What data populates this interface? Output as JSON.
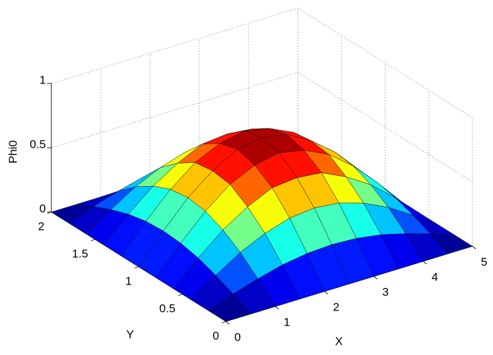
{
  "chart_data": {
    "type": "surface",
    "colormap": "jet",
    "grid": true,
    "xlabel": "X",
    "ylabel": "Y",
    "zlabel": "Phi0",
    "x": [
      0,
      0.5,
      1,
      1.5,
      2,
      2.5,
      3,
      3.5,
      4,
      4.5,
      5
    ],
    "y": [
      0,
      0.2,
      0.4,
      0.6,
      0.8,
      1,
      1.2,
      1.4,
      1.6,
      1.8,
      2
    ],
    "z": [
      [
        0,
        0,
        0,
        0,
        0,
        0,
        0,
        0,
        0,
        0,
        0
      ],
      [
        0,
        0.07,
        0.13,
        0.18,
        0.21,
        0.22,
        0.21,
        0.18,
        0.13,
        0.07,
        0
      ],
      [
        0,
        0.13,
        0.25,
        0.34,
        0.4,
        0.42,
        0.4,
        0.34,
        0.25,
        0.13,
        0
      ],
      [
        0,
        0.18,
        0.34,
        0.46,
        0.55,
        0.57,
        0.55,
        0.46,
        0.34,
        0.18,
        0
      ],
      [
        0,
        0.21,
        0.4,
        0.55,
        0.64,
        0.68,
        0.64,
        0.55,
        0.4,
        0.21,
        0
      ],
      [
        0,
        0.22,
        0.42,
        0.57,
        0.68,
        0.71,
        0.68,
        0.57,
        0.42,
        0.22,
        0
      ],
      [
        0,
        0.21,
        0.4,
        0.55,
        0.64,
        0.68,
        0.64,
        0.55,
        0.4,
        0.21,
        0
      ],
      [
        0,
        0.18,
        0.34,
        0.46,
        0.55,
        0.57,
        0.55,
        0.46,
        0.34,
        0.18,
        0
      ],
      [
        0,
        0.13,
        0.25,
        0.34,
        0.4,
        0.42,
        0.4,
        0.34,
        0.25,
        0.13,
        0
      ],
      [
        0,
        0.07,
        0.13,
        0.18,
        0.21,
        0.22,
        0.21,
        0.18,
        0.13,
        0.07,
        0
      ],
      [
        0,
        0,
        0,
        0,
        0,
        0,
        0,
        0,
        0,
        0,
        0
      ]
    ],
    "xlim": [
      0,
      5
    ],
    "ylim": [
      0,
      2
    ],
    "zlim": [
      0,
      1
    ],
    "xticks": [
      0,
      1,
      2,
      3,
      4,
      5
    ],
    "yticks": [
      0,
      0.5,
      1,
      1.5,
      2
    ],
    "zticks": [
      0,
      0.5,
      1
    ]
  }
}
